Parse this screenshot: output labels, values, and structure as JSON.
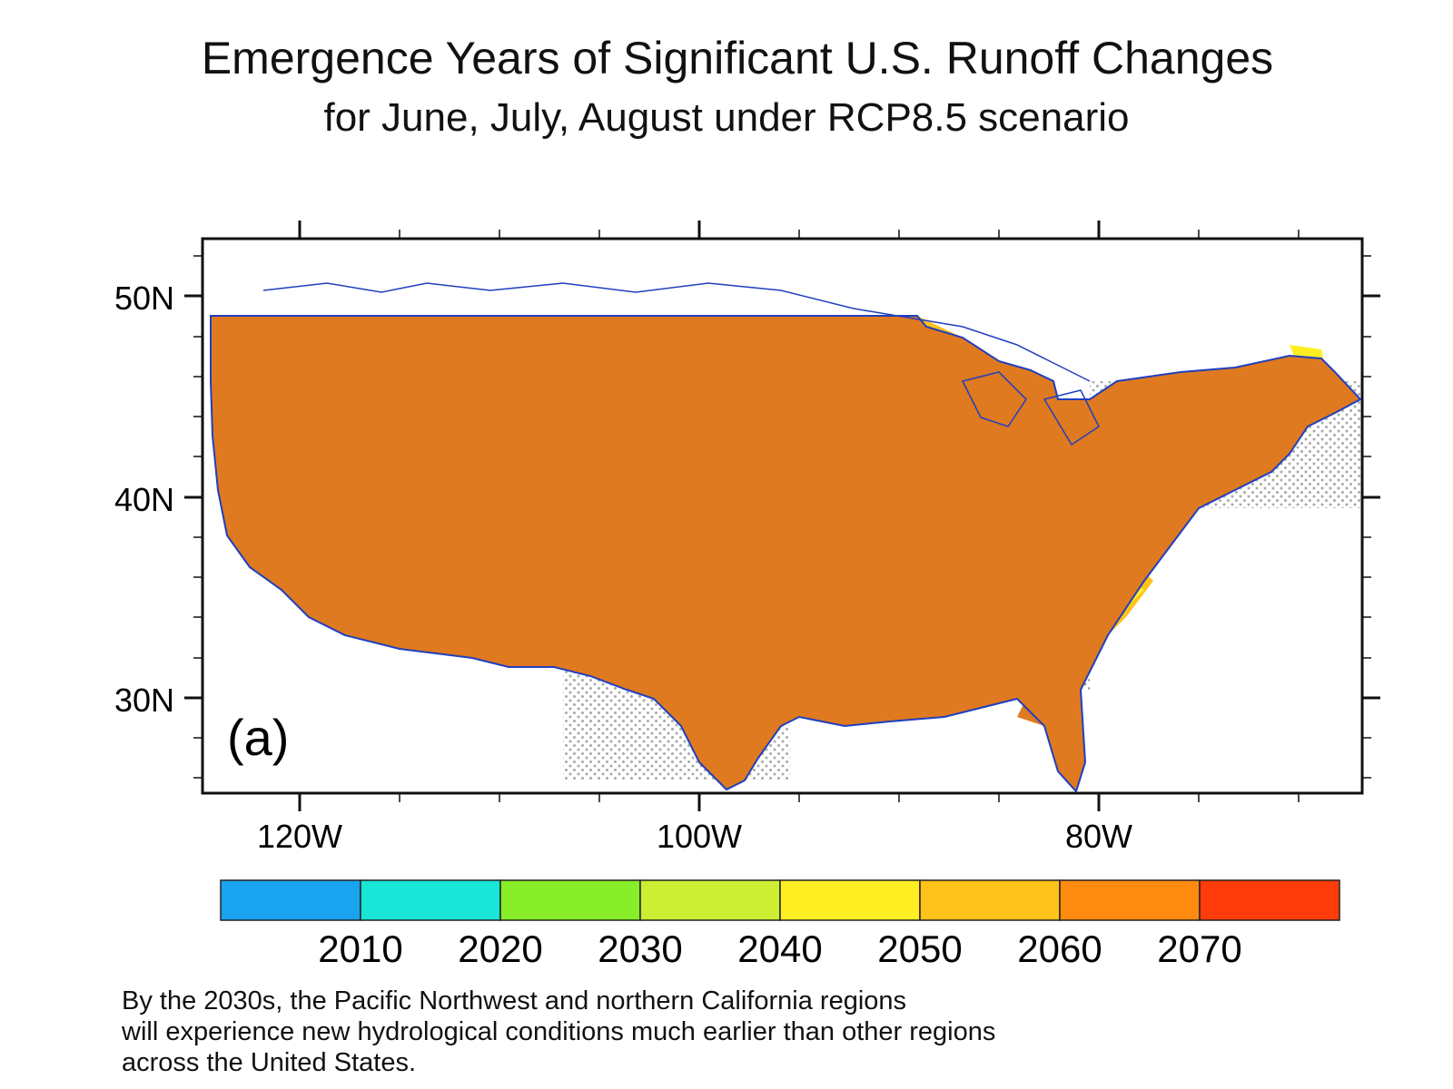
{
  "header": {
    "title": "Emergence Years of Significant U.S. Runoff Changes",
    "subtitle": "for June, July, August under RCP8.5 scenario"
  },
  "map": {
    "panel_label": "(a)",
    "lat_labels": [
      "50N",
      "40N",
      "30N"
    ],
    "lon_labels": [
      "120W",
      "100W",
      "80W"
    ],
    "stipple_meaning": "",
    "background": "#ffffff",
    "land_outline_color": "#1f3fbf"
  },
  "legend": {
    "colors": [
      "#1aa3ee",
      "#19e6d6",
      "#88ee2a",
      "#ccee33",
      "#ffee22",
      "#ffc21a",
      "#ff8a10",
      "#ff3c0a"
    ],
    "labels": [
      "2010",
      "2020",
      "2030",
      "2040",
      "2050",
      "2060",
      "2070"
    ]
  },
  "caption": {
    "lines": [
      "By the 2030s, the Pacific Northwest and northern California regions",
      "will experience new hydrological conditions much earlier than other regions",
      "across the United States."
    ]
  }
}
